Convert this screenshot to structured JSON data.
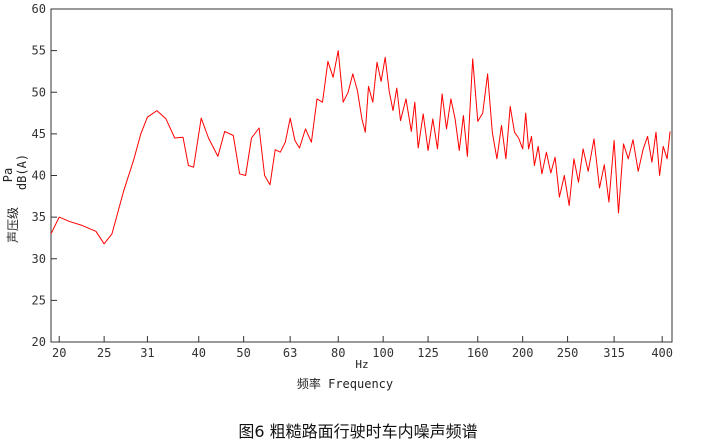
{
  "chart_data": {
    "type": "line",
    "title": "",
    "caption": "图6 粗糙路面行驶时车内噪声频谱",
    "xlabel_unit": "Hz",
    "xlabel": "频率 Frequency",
    "ylabel_unit_top": "Pa",
    "ylabel_unit": "dB(A)",
    "ylabel": "声压级",
    "ylim": [
      20,
      60
    ],
    "yticks": [
      "20",
      "25",
      "30",
      "35",
      "40",
      "45",
      "50",
      "55",
      "60"
    ],
    "xscale": "log",
    "xlim": [
      19.2,
      420
    ],
    "xticks": [
      "20",
      "25",
      "31",
      "40",
      "50",
      "63",
      "80",
      "100",
      "125",
      "160",
      "200",
      "250",
      "315",
      "400"
    ],
    "grid": false,
    "line_color": "#ff0000",
    "series": [
      {
        "x": [
          19.2,
          20,
          21,
          22.4,
          24,
          25,
          26,
          27.5,
          29,
          30,
          31,
          32.5,
          34,
          35.5,
          37,
          38,
          39,
          40.5,
          42,
          44,
          45.5,
          47.5,
          49,
          50.5,
          52,
          54,
          55.5,
          57,
          58.5,
          60,
          61.5,
          63,
          64.5,
          66,
          68,
          70,
          72,
          74,
          76,
          78,
          80,
          82,
          84,
          86,
          88,
          90,
          91.5,
          93,
          95,
          97,
          99,
          101,
          103,
          105,
          107,
          109,
          112,
          115,
          117,
          119,
          122,
          125,
          128,
          131,
          134,
          137,
          140,
          143,
          146,
          149,
          152,
          156,
          160,
          164,
          168,
          172,
          176,
          180,
          184,
          188,
          192,
          196,
          200,
          203,
          206,
          209,
          212,
          216,
          220,
          225,
          230,
          235,
          240,
          246,
          252,
          258,
          264,
          270,
          277,
          285,
          293,
          300,
          307,
          315,
          322,
          330,
          338,
          346,
          355,
          364,
          372,
          380,
          388,
          395,
          402,
          410,
          416
        ],
        "values": [
          33,
          35,
          34.5,
          34,
          33.3,
          31.8,
          33,
          38,
          42,
          45,
          47,
          47.8,
          46.8,
          44.5,
          44.6,
          41.2,
          41,
          46.9,
          44.5,
          42.3,
          45.3,
          44.8,
          40.2,
          40,
          44.5,
          45.7,
          40,
          38.9,
          43.1,
          42.8,
          44,
          46.9,
          44.2,
          43.3,
          45.6,
          44,
          49.2,
          48.8,
          53.7,
          51.8,
          55,
          48.8,
          50,
          52.2,
          50.2,
          46.8,
          45.2,
          50.7,
          48.8,
          53.6,
          51.3,
          54.2,
          50.2,
          47.8,
          50.5,
          46.6,
          49.2,
          45.3,
          48.8,
          43.3,
          47.4,
          43,
          46.8,
          43.2,
          49.8,
          45.6,
          49.2,
          46.8,
          43,
          47.2,
          42.3,
          54,
          46.5,
          47.5,
          52.2,
          45.2,
          42,
          46,
          42,
          48.3,
          45.2,
          44.5,
          43.2,
          47.5,
          43.2,
          44.7,
          41.2,
          43.5,
          40.2,
          42.8,
          40.3,
          42.2,
          37.4,
          40,
          36.4,
          42,
          39.2,
          43.2,
          40.5,
          44.4,
          38.5,
          41.3,
          36.8,
          44.2,
          35.5,
          43.8,
          42,
          44.3,
          40.5,
          43.2,
          44.7,
          41.6,
          45.2,
          40,
          43.5,
          42,
          45.3
        ]
      }
    ]
  }
}
